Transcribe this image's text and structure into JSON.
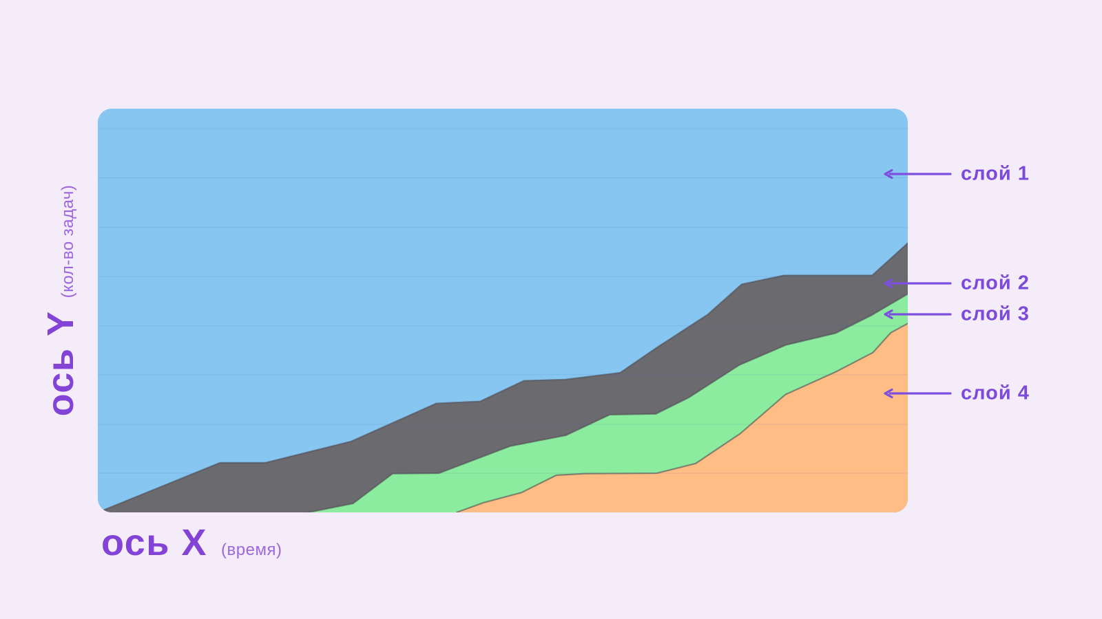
{
  "theme": {
    "background": "#F5ECFA",
    "accent_purple": "#7C4FE0",
    "axis_title_color": "#8243D6",
    "axis_subtitle_color": "#9D67DF",
    "annotation_label_color": "#7B4AD9",
    "boundary_stroke": "rgba(80,76,84,0.6)",
    "gridline_color": "#4A6BA5"
  },
  "y_axis": {
    "title": "ось Y",
    "subtitle": "(кол-во задач)"
  },
  "x_axis": {
    "title": "ось X",
    "subtitle": "(время)"
  },
  "annotations": [
    {
      "label": "слой 1"
    },
    {
      "label": "слой 2"
    },
    {
      "label": "слой 3"
    },
    {
      "label": "слой 4"
    }
  ],
  "chart_data": {
    "type": "area",
    "stacked": true,
    "title": "",
    "xlabel": "ось X (время)",
    "ylabel": "ось Y (кол-во задач)",
    "x_axis_ticks": [],
    "y_axis_ticks": [],
    "grid": {
      "horizontal": true,
      "vertical": false,
      "y_positions_pct": [
        9.7,
        21.8,
        34.1,
        46.2,
        58.4,
        70.6,
        82.9,
        95.1
      ]
    },
    "legend_position": "right-arrow-annotations",
    "value_encoding": "top_boundary_pct = [x as % of plot width, cumulative stack height as % of plot height above x-axis]",
    "series": [
      {
        "name": "слой 1",
        "color": "#87C6F0",
        "role": "top layer — fills all remaining area up to the top of the plot"
      },
      {
        "name": "слой 2",
        "color": "#6B6A6F",
        "top_boundary_pct": [
          [
            0,
            0
          ],
          [
            15.1,
            12.3
          ],
          [
            20.7,
            12.3
          ],
          [
            31.3,
            17.6
          ],
          [
            41.8,
            27.0
          ],
          [
            47.2,
            27.5
          ],
          [
            52.6,
            32.6
          ],
          [
            57.7,
            32.9
          ],
          [
            64.5,
            34.6
          ],
          [
            69.0,
            40.8
          ],
          [
            75.3,
            49.0
          ],
          [
            79.5,
            56.5
          ],
          [
            84.7,
            58.7
          ],
          [
            95.6,
            58.7
          ],
          [
            100,
            66.7
          ]
        ]
      },
      {
        "name": "слой 3",
        "color": "#8BEC9F",
        "top_boundary_pct": [
          [
            26.0,
            0
          ],
          [
            31.5,
            2.2
          ],
          [
            36.4,
            9.6
          ],
          [
            42.1,
            9.7
          ],
          [
            45.9,
            12.6
          ],
          [
            50.9,
            16.4
          ],
          [
            57.8,
            19.1
          ],
          [
            63.2,
            24.2
          ],
          [
            68.9,
            24.4
          ],
          [
            73.0,
            28.5
          ],
          [
            79.2,
            36.5
          ],
          [
            85.0,
            41.5
          ],
          [
            91.1,
            44.4
          ],
          [
            95.5,
            48.8
          ],
          [
            100,
            54.1
          ]
        ]
      },
      {
        "name": "слой 4",
        "color": "#FFBD86",
        "top_boundary_pct": [
          [
            44.3,
            0
          ],
          [
            47.6,
            2.4
          ],
          [
            52.3,
            4.9
          ],
          [
            56.6,
            9.2
          ],
          [
            60.2,
            9.6
          ],
          [
            69.0,
            9.7
          ],
          [
            73.8,
            12.1
          ],
          [
            79.3,
            19.5
          ],
          [
            84.9,
            29.2
          ],
          [
            91.1,
            34.8
          ],
          [
            95.7,
            39.6
          ],
          [
            97.9,
            44.5
          ],
          [
            100,
            46.8
          ]
        ]
      }
    ]
  }
}
